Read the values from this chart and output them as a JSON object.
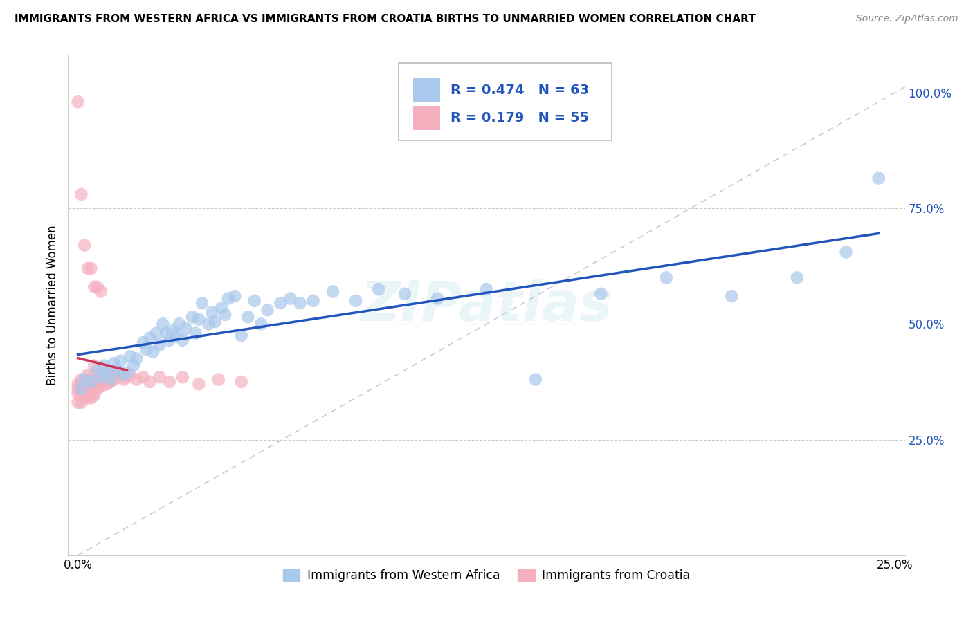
{
  "title": "IMMIGRANTS FROM WESTERN AFRICA VS IMMIGRANTS FROM CROATIA BIRTHS TO UNMARRIED WOMEN CORRELATION CHART",
  "source": "Source: ZipAtlas.com",
  "ylabel": "Births to Unmarried Women",
  "legend1_label": "Immigrants from Western Africa",
  "legend2_label": "Immigrants from Croatia",
  "R1": 0.474,
  "N1": 63,
  "R2": 0.179,
  "N2": 55,
  "color_blue": "#a8c8ec",
  "color_pink": "#f5b0c0",
  "line_blue": "#2255bb",
  "line_pink": "#cc3355",
  "diag_color": "#cccccc",
  "watermark": "ZIPatlas",
  "blue_x": [
    0.001,
    0.002,
    0.004,
    0.006,
    0.007,
    0.008,
    0.009,
    0.01,
    0.011,
    0.012,
    0.013,
    0.014,
    0.015,
    0.016,
    0.017,
    0.018,
    0.02,
    0.021,
    0.022,
    0.023,
    0.024,
    0.025,
    0.026,
    0.027,
    0.028,
    0.029,
    0.03,
    0.031,
    0.032,
    0.033,
    0.035,
    0.036,
    0.037,
    0.038,
    0.04,
    0.041,
    0.042,
    0.044,
    0.045,
    0.046,
    0.048,
    0.05,
    0.052,
    0.054,
    0.056,
    0.058,
    0.062,
    0.065,
    0.068,
    0.072,
    0.078,
    0.085,
    0.092,
    0.1,
    0.11,
    0.125,
    0.14,
    0.16,
    0.18,
    0.2,
    0.22,
    0.235,
    0.245
  ],
  "blue_y": [
    0.36,
    0.38,
    0.375,
    0.4,
    0.385,
    0.41,
    0.395,
    0.38,
    0.415,
    0.4,
    0.42,
    0.39,
    0.395,
    0.43,
    0.41,
    0.425,
    0.46,
    0.445,
    0.47,
    0.44,
    0.48,
    0.455,
    0.5,
    0.48,
    0.465,
    0.485,
    0.475,
    0.5,
    0.465,
    0.49,
    0.515,
    0.48,
    0.51,
    0.545,
    0.5,
    0.525,
    0.505,
    0.535,
    0.52,
    0.555,
    0.56,
    0.475,
    0.515,
    0.55,
    0.5,
    0.53,
    0.545,
    0.555,
    0.545,
    0.55,
    0.57,
    0.55,
    0.575,
    0.565,
    0.555,
    0.575,
    0.38,
    0.565,
    0.6,
    0.56,
    0.6,
    0.655,
    0.815
  ],
  "pink_x": [
    0.0,
    0.0,
    0.0,
    0.0,
    0.001,
    0.001,
    0.001,
    0.001,
    0.001,
    0.002,
    0.002,
    0.002,
    0.002,
    0.003,
    0.003,
    0.003,
    0.003,
    0.004,
    0.004,
    0.004,
    0.004,
    0.005,
    0.005,
    0.005,
    0.005,
    0.005,
    0.006,
    0.006,
    0.006,
    0.007,
    0.007,
    0.007,
    0.008,
    0.008,
    0.008,
    0.009,
    0.009,
    0.01,
    0.01,
    0.011,
    0.011,
    0.012,
    0.013,
    0.014,
    0.015,
    0.016,
    0.018,
    0.02,
    0.022,
    0.025,
    0.028,
    0.032,
    0.037,
    0.043,
    0.05
  ],
  "pink_y": [
    0.33,
    0.35,
    0.36,
    0.37,
    0.33,
    0.35,
    0.37,
    0.38,
    0.36,
    0.34,
    0.36,
    0.37,
    0.38,
    0.34,
    0.355,
    0.37,
    0.39,
    0.34,
    0.355,
    0.37,
    0.38,
    0.345,
    0.36,
    0.375,
    0.39,
    0.41,
    0.36,
    0.37,
    0.385,
    0.365,
    0.38,
    0.395,
    0.37,
    0.385,
    0.395,
    0.37,
    0.385,
    0.375,
    0.39,
    0.38,
    0.395,
    0.385,
    0.39,
    0.38,
    0.385,
    0.39,
    0.38,
    0.385,
    0.375,
    0.385,
    0.375,
    0.385,
    0.37,
    0.38,
    0.375
  ],
  "pink_outliers_x": [
    0.0,
    0.001,
    0.002,
    0.003,
    0.004,
    0.005,
    0.006,
    0.007
  ],
  "pink_outliers_y": [
    0.98,
    0.78,
    0.67,
    0.62,
    0.62,
    0.58,
    0.58,
    0.57
  ],
  "xlim": [
    -0.003,
    0.253
  ],
  "ylim": [
    0.0,
    1.08
  ],
  "y_tick_vals": [
    0.25,
    0.5,
    0.75,
    1.0
  ],
  "y_tick_labels": [
    "25.0%",
    "50.0%",
    "75.0%",
    "100.0%"
  ],
  "x_tick_vals": [
    0.0,
    0.25
  ],
  "x_tick_labels": [
    "0.0%",
    "25.0%"
  ],
  "figwidth": 14.06,
  "figheight": 8.92,
  "dpi": 100
}
